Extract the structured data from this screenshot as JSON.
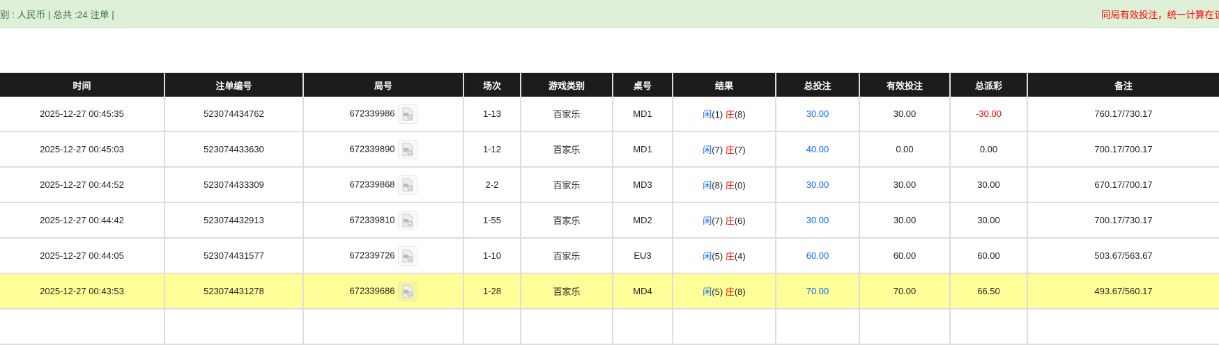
{
  "banner": {
    "summary": "别 : 人民币 | 总共 :24 注单 |",
    "notice": "同局有效投注，统一计算在该局"
  },
  "table": {
    "headers": [
      "时间",
      "注单编号",
      "局号",
      "场次",
      "游戏类别",
      "桌号",
      "结果",
      "总投注",
      "有效投注",
      "总派彩",
      "备注"
    ],
    "rows": [
      {
        "time": "2025-12-27 00:45:35",
        "bet_id": "523074434762",
        "round": "672339986",
        "shoe": "1-13",
        "game": "百家乐",
        "table": "MD1",
        "player_label": "闲",
        "player": "(1)",
        "banker_label": "庄",
        "banker": "(8)",
        "total": "30.00",
        "valid": "30.00",
        "payout": "-30.00",
        "payout_negative": true,
        "note": "760.17/730.17",
        "highlight": false
      },
      {
        "time": "2025-12-27 00:45:03",
        "bet_id": "523074433630",
        "round": "672339890",
        "shoe": "1-12",
        "game": "百家乐",
        "table": "MD1",
        "player_label": "闲",
        "player": "(7)",
        "banker_label": "庄",
        "banker": "(7)",
        "total": "40.00",
        "valid": "0.00",
        "payout": "0.00",
        "payout_negative": false,
        "note": "700.17/700.17",
        "highlight": false
      },
      {
        "time": "2025-12-27 00:44:52",
        "bet_id": "523074433309",
        "round": "672339868",
        "shoe": "2-2",
        "game": "百家乐",
        "table": "MD3",
        "player_label": "闲",
        "player": "(8)",
        "banker_label": "庄",
        "banker": "(0)",
        "total": "30.00",
        "valid": "30.00",
        "payout": "30.00",
        "payout_negative": false,
        "note": "670.17/700.17",
        "highlight": false
      },
      {
        "time": "2025-12-27 00:44:42",
        "bet_id": "523074432913",
        "round": "672339810",
        "shoe": "1-55",
        "game": "百家乐",
        "table": "MD2",
        "player_label": "闲",
        "player": "(7)",
        "banker_label": "庄",
        "banker": "(6)",
        "total": "30.00",
        "valid": "30.00",
        "payout": "30.00",
        "payout_negative": false,
        "note": "700.17/730.17",
        "highlight": false
      },
      {
        "time": "2025-12-27 00:44:05",
        "bet_id": "523074431577",
        "round": "672339726",
        "shoe": "1-10",
        "game": "百家乐",
        "table": "EU3",
        "player_label": "闲",
        "player": "(5)",
        "banker_label": "庄",
        "banker": "(4)",
        "total": "60.00",
        "valid": "60.00",
        "payout": "60.00",
        "payout_negative": false,
        "note": "503.67/563.67",
        "highlight": false
      },
      {
        "time": "2025-12-27 00:43:53",
        "bet_id": "523074431278",
        "round": "672339686",
        "shoe": "1-28",
        "game": "百家乐",
        "table": "MD4",
        "player_label": "闲",
        "player": "(5)",
        "banker_label": "庄",
        "banker": "(8)",
        "total": "70.00",
        "valid": "70.00",
        "payout": "66.50",
        "payout_negative": false,
        "note": "493.67/560.17",
        "highlight": true
      }
    ],
    "row_icon": "video-file-icon"
  },
  "colors": {
    "header_bg": "#1c1c1c",
    "banner_bg": "#dff0d8",
    "highlight": "#ffff99",
    "blue": "#0a6cf5",
    "red": "#ff0000"
  }
}
